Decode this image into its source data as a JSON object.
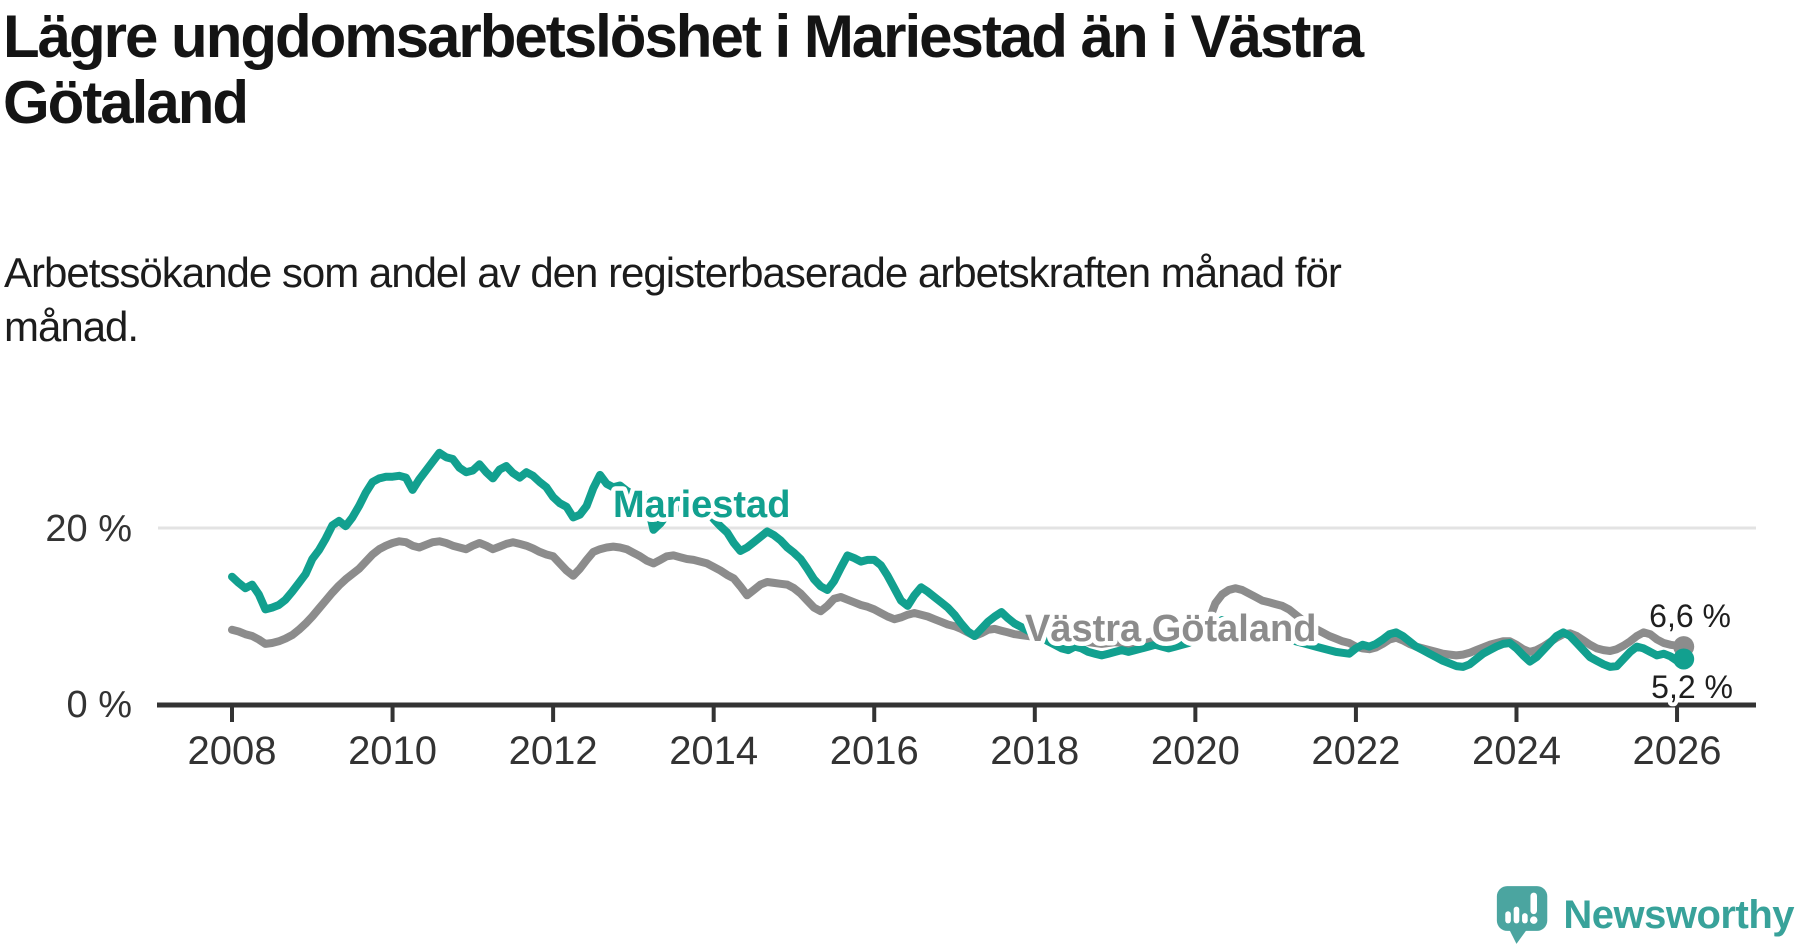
{
  "title_lines": [
    "Lägre ungdomsarbetslöshet i Mariestad än i Västra",
    "Götaland"
  ],
  "subtitle_lines": [
    "Arbetssökande som andel av den registerbaserade arbetskraften månad för",
    "månad."
  ],
  "colors": {
    "mariestad_line": "#12a08f",
    "vastra_gotaland_line": "#8c8c8c",
    "axis": "#333333",
    "gridline": "#e3e3e3",
    "brand_teal": "#4ba5a0"
  },
  "chart_data": {
    "type": "line",
    "unit": "%",
    "x_start": "2008-01",
    "x_interval": "month",
    "xticks": [
      "2008",
      "2010",
      "2012",
      "2014",
      "2016",
      "2018",
      "2020",
      "2022",
      "2024",
      "2026"
    ],
    "yticks": [
      {
        "value": 0,
        "label": "0 %"
      },
      {
        "value": 20,
        "label": "20 %"
      }
    ],
    "ylim": [
      0,
      30
    ],
    "grid": "horizontal line at 20 % only",
    "legend_position": "labels drawn on chart next to lines",
    "axis_color": "#333333",
    "series": [
      {
        "name": "Västra Götaland",
        "color": "#8c8c8c",
        "end_label": "6,6 %",
        "values": [
          8.5,
          8.3,
          8.0,
          7.8,
          7.4,
          6.9,
          7.0,
          7.2,
          7.5,
          7.9,
          8.5,
          9.2,
          10.0,
          10.9,
          11.8,
          12.7,
          13.5,
          14.2,
          14.8,
          15.4,
          16.2,
          17.0,
          17.6,
          18.0,
          18.3,
          18.5,
          18.4,
          18.0,
          17.8,
          18.1,
          18.4,
          18.5,
          18.3,
          18.0,
          17.8,
          17.6,
          18.0,
          18.3,
          18.0,
          17.6,
          17.9,
          18.2,
          18.4,
          18.2,
          18.0,
          17.7,
          17.3,
          17.0,
          16.8,
          16.0,
          15.2,
          14.6,
          15.4,
          16.4,
          17.3,
          17.6,
          17.8,
          17.9,
          17.8,
          17.6,
          17.2,
          16.8,
          16.3,
          16.0,
          16.4,
          16.8,
          16.9,
          16.7,
          16.5,
          16.4,
          16.2,
          16.0,
          15.6,
          15.2,
          14.7,
          14.3,
          13.4,
          12.4,
          13.0,
          13.6,
          13.9,
          13.8,
          13.7,
          13.6,
          13.2,
          12.6,
          11.8,
          11.0,
          10.6,
          11.2,
          12.0,
          12.2,
          11.9,
          11.6,
          11.3,
          11.1,
          10.8,
          10.4,
          10.0,
          9.7,
          9.9,
          10.2,
          10.4,
          10.2,
          10.0,
          9.7,
          9.4,
          9.1,
          8.9,
          8.6,
          8.2,
          7.8,
          8.1,
          8.5,
          8.6,
          8.4,
          8.2,
          8.0,
          7.9,
          7.8,
          7.7,
          7.5,
          7.3,
          7.1,
          7.0,
          7.2,
          7.4,
          7.3,
          7.1,
          7.0,
          6.9,
          7.0,
          7.1,
          7.0,
          6.9,
          6.8,
          6.9,
          7.1,
          7.3,
          7.2,
          7.1,
          7.2,
          7.3,
          7.5,
          7.8,
          8.2,
          9.5,
          11.5,
          12.5,
          13.0,
          13.2,
          13.0,
          12.6,
          12.2,
          11.8,
          11.6,
          11.4,
          11.2,
          10.8,
          10.2,
          9.6,
          9.0,
          8.6,
          8.2,
          7.8,
          7.5,
          7.2,
          7.0,
          6.6,
          6.4,
          6.3,
          6.5,
          6.9,
          7.4,
          7.6,
          7.3,
          6.9,
          6.6,
          6.4,
          6.2,
          6.0,
          5.8,
          5.7,
          5.6,
          5.7,
          5.9,
          6.2,
          6.5,
          6.8,
          7.0,
          7.2,
          7.2,
          6.8,
          6.3,
          6.0,
          6.2,
          6.6,
          7.1,
          7.6,
          8.0,
          8.1,
          7.8,
          7.3,
          6.8,
          6.4,
          6.2,
          6.1,
          6.3,
          6.7,
          7.2,
          7.8,
          8.2,
          8.0,
          7.4,
          7.0,
          6.8,
          6.7,
          6.6
        ]
      },
      {
        "name": "Mariestad",
        "color": "#12a08f",
        "end_label": "5,2 %",
        "values": [
          14.5,
          13.8,
          13.2,
          13.6,
          12.5,
          10.8,
          11.0,
          11.3,
          11.9,
          12.8,
          13.8,
          14.8,
          16.5,
          17.5,
          18.8,
          20.3,
          20.8,
          20.2,
          21.2,
          22.5,
          24.0,
          25.2,
          25.6,
          25.8,
          25.8,
          25.9,
          25.7,
          24.3,
          25.5,
          26.5,
          27.5,
          28.5,
          28.0,
          27.8,
          26.8,
          26.3,
          26.5,
          27.2,
          26.3,
          25.6,
          26.6,
          27.0,
          26.2,
          25.7,
          26.3,
          25.9,
          25.2,
          24.6,
          23.5,
          22.8,
          22.4,
          21.2,
          21.5,
          22.5,
          24.5,
          26.0,
          25.0,
          24.6,
          24.8,
          24.2,
          23.8,
          24.2,
          23.0,
          19.8,
          20.5,
          21.5,
          22.0,
          22.6,
          23.2,
          22.8,
          22.4,
          22.0,
          21.0,
          20.2,
          19.5,
          18.3,
          17.4,
          17.8,
          18.4,
          19.0,
          19.6,
          19.2,
          18.6,
          17.8,
          17.2,
          16.5,
          15.4,
          14.2,
          13.4,
          13.0,
          14.0,
          15.5,
          16.9,
          16.6,
          16.2,
          16.4,
          16.4,
          15.8,
          14.6,
          13.2,
          11.8,
          11.2,
          12.4,
          13.3,
          12.8,
          12.2,
          11.6,
          11.0,
          10.2,
          9.2,
          8.3,
          7.8,
          8.6,
          9.4,
          10.0,
          10.5,
          9.8,
          9.2,
          8.8,
          8.4,
          8.0,
          7.6,
          7.2,
          6.8,
          6.4,
          6.2,
          6.6,
          6.4,
          6.0,
          5.8,
          5.6,
          5.8,
          6.0,
          6.2,
          6.0,
          6.2,
          6.4,
          6.6,
          6.8,
          6.6,
          6.4,
          6.6,
          6.8,
          7.0,
          7.4,
          7.8,
          8.4,
          9.2,
          9.6,
          9.4,
          9.0,
          8.8,
          8.6,
          8.4,
          8.2,
          8.0,
          7.8,
          7.6,
          7.4,
          7.2,
          7.0,
          6.8,
          6.6,
          6.4,
          6.2,
          6.0,
          5.9,
          5.8,
          6.4,
          6.8,
          6.6,
          6.9,
          7.4,
          8.0,
          8.2,
          7.8,
          7.2,
          6.6,
          6.2,
          5.8,
          5.4,
          5.0,
          4.7,
          4.4,
          4.3,
          4.6,
          5.2,
          5.8,
          6.2,
          6.6,
          6.9,
          7.0,
          6.4,
          5.6,
          4.9,
          5.4,
          6.2,
          7.0,
          7.8,
          8.2,
          7.8,
          7.0,
          6.2,
          5.4,
          5.0,
          4.6,
          4.3,
          4.4,
          5.2,
          6.0,
          6.6,
          6.4,
          6.0,
          5.6,
          5.8,
          5.5,
          5.0,
          5.2
        ]
      }
    ]
  },
  "branding": {
    "label": "Newsworthy"
  }
}
